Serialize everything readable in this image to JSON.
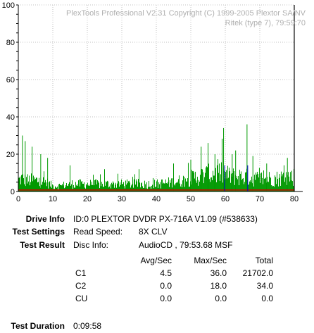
{
  "chart_data": {
    "type": "bar",
    "title": "PlexTools Professional V2.31 Copyright (C) 1999-2005 Plextor SA/NV",
    "subtitle": "Ritek (type 7), 79:59:70",
    "xlim": [
      0,
      80
    ],
    "ylim": [
      0,
      100
    ],
    "x_ticks": [
      "0",
      "10",
      "20",
      "30",
      "40",
      "50",
      "60",
      "70",
      "80"
    ],
    "y_ticks": [
      "100",
      "80",
      "60",
      "40",
      "20",
      "0"
    ],
    "grid": true,
    "colors": {
      "c1": "#009900",
      "c2": "#cc0000",
      "marker": "#000000",
      "blue": "#0000cc"
    },
    "c1_profile_x": [
      0,
      1,
      2,
      5,
      8,
      10,
      12,
      15,
      18,
      20,
      25,
      30,
      35,
      40,
      45,
      48,
      50,
      52,
      55,
      58,
      60,
      62,
      65,
      68,
      70,
      72,
      75,
      78,
      80
    ],
    "c1_profile_avg": [
      6,
      7,
      6,
      6,
      5,
      3,
      3,
      4,
      4,
      4,
      4,
      4,
      4,
      4,
      5,
      6,
      7,
      8,
      9,
      10,
      9,
      8,
      8,
      7,
      7,
      7,
      7,
      8,
      8
    ],
    "c1_peaks": [
      {
        "x": 1.2,
        "y": 30
      },
      {
        "x": 2.0,
        "y": 27
      },
      {
        "x": 4.0,
        "y": 24
      },
      {
        "x": 6.5,
        "y": 20
      },
      {
        "x": 8.5,
        "y": 18
      },
      {
        "x": 15.0,
        "y": 14
      },
      {
        "x": 25.0,
        "y": 12
      },
      {
        "x": 35.0,
        "y": 12
      },
      {
        "x": 45.0,
        "y": 15
      },
      {
        "x": 50.0,
        "y": 17
      },
      {
        "x": 53.0,
        "y": 24
      },
      {
        "x": 55.0,
        "y": 26
      },
      {
        "x": 57.0,
        "y": 20
      },
      {
        "x": 59.5,
        "y": 34
      },
      {
        "x": 62.0,
        "y": 20
      },
      {
        "x": 63.0,
        "y": 22
      },
      {
        "x": 66.3,
        "y": 36
      },
      {
        "x": 68.0,
        "y": 19
      },
      {
        "x": 72.0,
        "y": 15
      },
      {
        "x": 78.0,
        "y": 18
      }
    ],
    "c2_x": [
      0,
      80
    ],
    "c2_values": [
      0.8,
      0.8
    ],
    "blue_markers_x": [
      59.8,
      66.5
    ],
    "end_marker_x": 79.99
  },
  "info": {
    "drive_label": "Drive Info",
    "drive_value": "ID:0 PLEXTOR DVDR PX-716A V1.09 (#538633)",
    "settings_label": "Test Settings",
    "read_speed_label": "Read Speed:",
    "read_speed_value": "8X CLV",
    "result_label": "Test Result",
    "disc_info_label": "Disc Info:",
    "disc_info_value": "AudioCD , 79:53.68 MSF",
    "duration_label": "Test Duration",
    "duration_value": "0:09:58"
  },
  "results": {
    "headers": [
      "Avg/Sec",
      "Max/Sec",
      "Total"
    ],
    "rows": [
      {
        "name": "C1",
        "avg": "4.5",
        "max": "36.0",
        "total": "21702.0"
      },
      {
        "name": "C2",
        "avg": "0.0",
        "max": "18.0",
        "total": "34.0"
      },
      {
        "name": "CU",
        "avg": "0.0",
        "max": "0.0",
        "total": "0.0"
      }
    ]
  }
}
